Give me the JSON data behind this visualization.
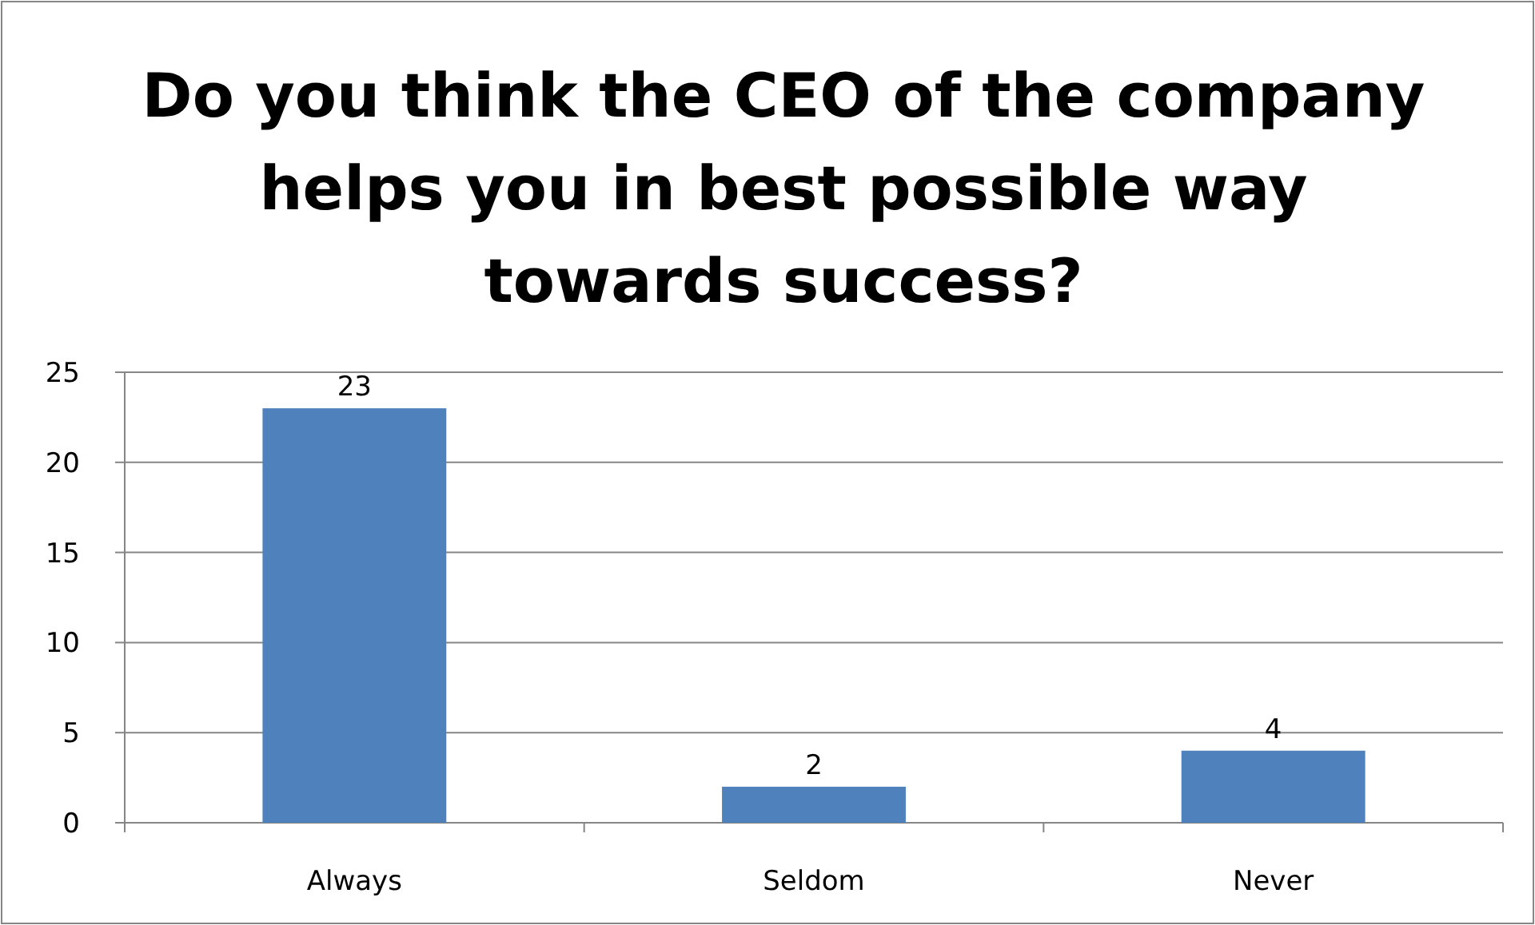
{
  "chart_data": {
    "type": "bar",
    "title": "Do you think the CEO of the company\nhelps you in best possible way\ntowards success?",
    "categories": [
      "Always",
      "Seldom",
      "Never"
    ],
    "values": [
      23,
      2,
      4
    ],
    "color": "#4f81bd",
    "ylim": [
      0,
      25
    ],
    "yticks": [
      0,
      5,
      10,
      15,
      20,
      25
    ],
    "grid": "y",
    "data_labels": true
  }
}
